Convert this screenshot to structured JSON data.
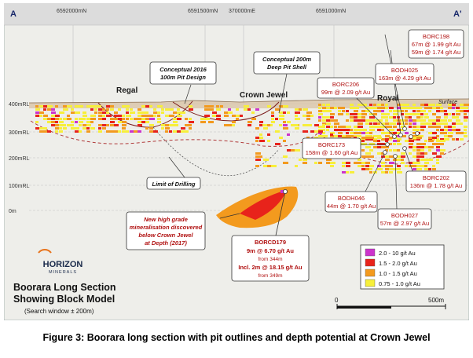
{
  "section": {
    "left_label": "A",
    "right_label": "A'"
  },
  "grid_labels": {
    "top": [
      "6592000mN",
      "6591500mN",
      "370000mE",
      "6591000mN"
    ],
    "side": [
      "400mRL",
      "300mRL",
      "200mRL",
      "100mRL",
      "0m"
    ]
  },
  "deposits": {
    "regal": "Regal",
    "crown_jewel": "Crown Jewel",
    "royal": "Royal",
    "surface": "Surface"
  },
  "callouts": {
    "pit2016": [
      "Conceptual 2016",
      "100m Pit Design"
    ],
    "pit200": [
      "Conceptual 200m",
      "Deep Pit Shell"
    ],
    "limit": "Limit of Drilling",
    "new_high": [
      "New high grade",
      "mineralisation discovered",
      "below Crown Jewel",
      "at Depth (2017)"
    ]
  },
  "holes": {
    "borc198": {
      "name": "BORC198",
      "lines": [
        "67m @ 1.99 g/t Au",
        "59m @ 1.74 g/t Au"
      ]
    },
    "bodh025": {
      "name": "BODH025",
      "lines": [
        "163m @ 4.29 g/t Au"
      ]
    },
    "borc206": {
      "name": "BORC206",
      "lines": [
        "99m @ 2.09 g/t Au"
      ]
    },
    "borc173": {
      "name": "BORC173",
      "lines": [
        "158m @ 1.60 g/t Au"
      ]
    },
    "borc202": {
      "name": "BORC202",
      "lines": [
        "136m @ 1.78 g/t Au"
      ]
    },
    "bodh046": {
      "name": "BODH046",
      "lines": [
        "44m @ 1.70 g/t Au"
      ]
    },
    "bodh027": {
      "name": "BODH027",
      "lines": [
        "57m @ 2.97 g/t Au"
      ]
    },
    "borcd179": {
      "name": "BORCD179",
      "lines": [
        "9m @ 6.70 g/t Au",
        "from 344m",
        "Incl. 2m @ 18.15 g/t Au",
        "from 349m"
      ]
    }
  },
  "logo": {
    "name": "HORIZON",
    "sub": "MINERALS"
  },
  "title": {
    "line1": "Boorara Long Section",
    "line2": "Showing Block Model",
    "line3": "(Search window ± 200m)"
  },
  "legend": {
    "items": [
      {
        "label": "2.0 - 10 g/t Au",
        "color": "#cc33cc"
      },
      {
        "label": "1.5 - 2.0 g/t Au",
        "color": "#e8231b"
      },
      {
        "label": "1.0 - 1.5 g/t Au",
        "color": "#f39a1e"
      },
      {
        "label": "0.75 - 1.0 g/t Au",
        "color": "#f7ef3a"
      }
    ]
  },
  "scale": {
    "start": "0",
    "end": "500m"
  },
  "caption": "Figure 3: Boorara long section with pit outlines and depth potential at Crown Jewel"
}
